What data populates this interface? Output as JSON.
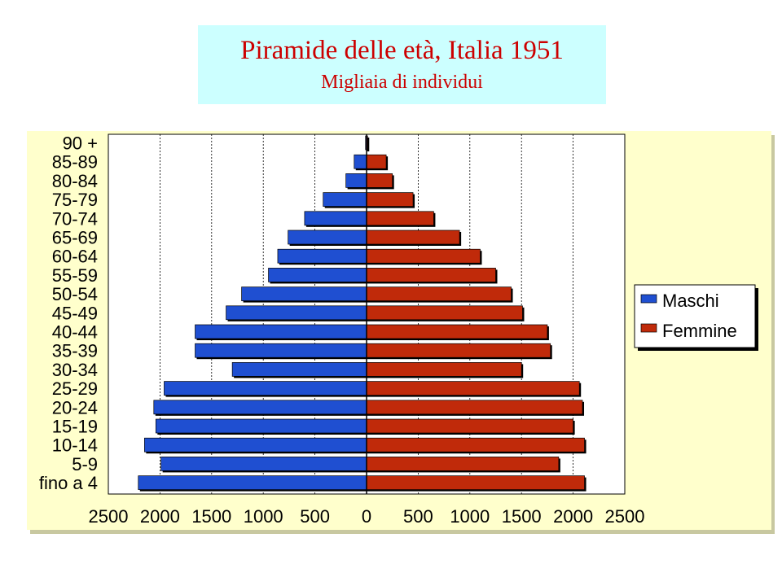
{
  "title": "Piramide delle età, Italia 1951",
  "subtitle": "Migliaia di individui",
  "colors": {
    "title_bg": "#ccffff",
    "title_text": "#cc0000",
    "panel_bg": "#ffffcc",
    "male": "#1f4fd1",
    "female": "#c02a0a"
  },
  "chart_data": {
    "type": "bar",
    "orientation": "horizontal",
    "categories": [
      "90 +",
      "85-89",
      "80-84",
      "75-79",
      "70-74",
      "65-69",
      "60-64",
      "55-59",
      "50-54",
      "45-49",
      "40-44",
      "35-39",
      "30-34",
      "25-29",
      "20-24",
      "15-19",
      "10-14",
      "5-9",
      "fino a 4"
    ],
    "series": [
      {
        "name": "Maschi",
        "values": [
          10,
          120,
          200,
          420,
          600,
          760,
          860,
          950,
          1210,
          1360,
          1660,
          1660,
          1300,
          1960,
          2060,
          2040,
          2150,
          1990,
          2210
        ]
      },
      {
        "name": "Femmine",
        "values": [
          10,
          190,
          250,
          450,
          650,
          900,
          1100,
          1250,
          1400,
          1510,
          1750,
          1780,
          1500,
          2060,
          2090,
          2000,
          2110,
          1860,
          2110
        ]
      }
    ],
    "xlim": [
      -2500,
      2500
    ],
    "x_ticks": [
      -2500,
      -2000,
      -1500,
      -1000,
      -500,
      0,
      500,
      1000,
      1500,
      2000,
      2500
    ],
    "x_tick_labels": [
      "2500",
      "2000",
      "1500",
      "1000",
      "500",
      "0",
      "500",
      "1000",
      "1500",
      "2000",
      "2500"
    ],
    "grid": true,
    "legend_position": "right"
  }
}
